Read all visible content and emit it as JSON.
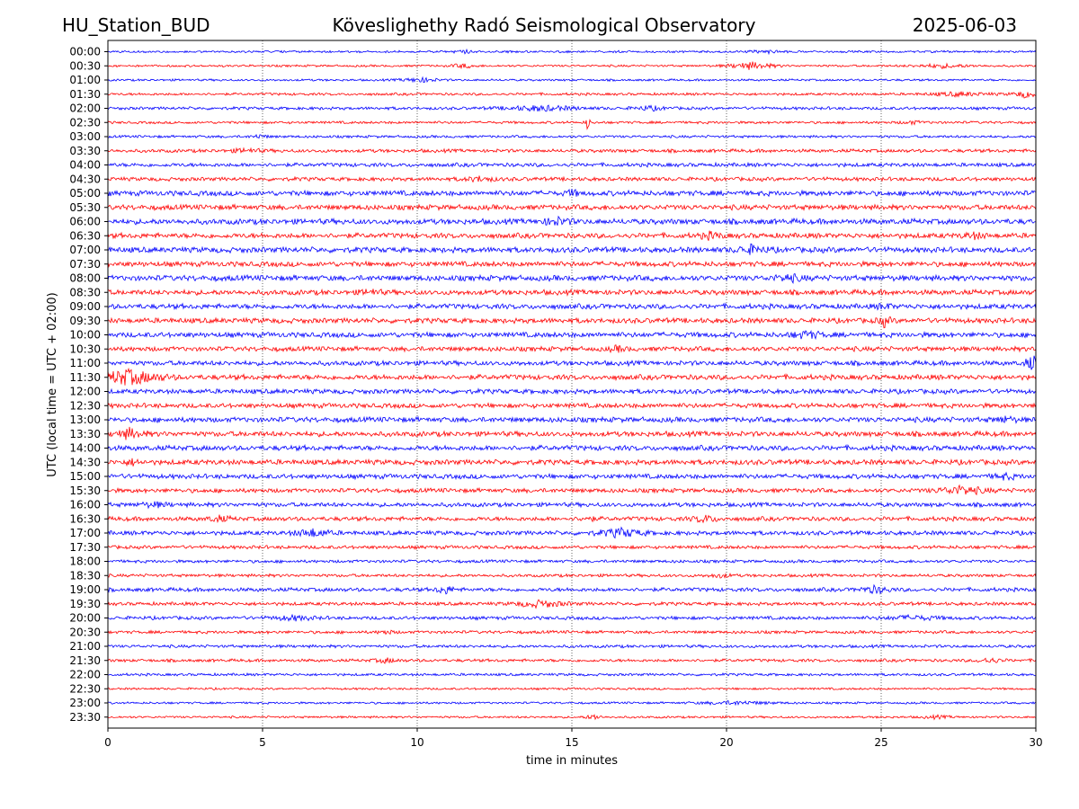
{
  "header": {
    "station": "HU_Station_BUD",
    "title": "Köveslighethy Radó Seismological Observatory",
    "date": "2025-06-03"
  },
  "chart_data": {
    "type": "line",
    "subtype": "helicorder",
    "title": "Köveslighethy Radó Seismological Observatory",
    "xlabel": "time in minutes",
    "ylabel": "UTC (local time = UTC + 02:00)",
    "xlim": [
      0,
      30
    ],
    "xticks": [
      "0",
      "5",
      "10",
      "15",
      "20",
      "25",
      "30"
    ],
    "grid": "vertical dotted at 5-minute intervals",
    "colors": {
      "even_rows": "#0000ff",
      "odd_rows": "#ff0000"
    },
    "rows": [
      {
        "label": "00:00",
        "noise": 0.25,
        "events": [
          {
            "t": 11.5,
            "amp": 0.5,
            "dur": 0.6
          },
          {
            "t": 21.3,
            "amp": 0.35,
            "dur": 1.2
          }
        ]
      },
      {
        "label": "00:30",
        "noise": 0.25,
        "events": [
          {
            "t": 11.5,
            "amp": 0.5,
            "dur": 0.8
          },
          {
            "t": 20.8,
            "amp": 0.9,
            "dur": 1.5
          },
          {
            "t": 27.0,
            "amp": 0.45,
            "dur": 2.0
          }
        ]
      },
      {
        "label": "01:00",
        "noise": 0.25,
        "events": [
          {
            "t": 10.1,
            "amp": 0.55,
            "dur": 1.2
          }
        ]
      },
      {
        "label": "01:30",
        "noise": 0.3,
        "events": [
          {
            "t": 29.7,
            "amp": 0.8,
            "dur": 0.9
          },
          {
            "t": 27.5,
            "amp": 0.45,
            "dur": 2.0
          }
        ]
      },
      {
        "label": "02:00",
        "noise": 0.35,
        "events": [
          {
            "t": 14.0,
            "amp": 0.6,
            "dur": 2.5
          },
          {
            "t": 17.5,
            "amp": 0.5,
            "dur": 1.0
          }
        ]
      },
      {
        "label": "02:30",
        "noise": 0.3,
        "events": [
          {
            "t": 15.5,
            "amp": 2.0,
            "dur": 0.15
          },
          {
            "t": 26.0,
            "amp": 0.35,
            "dur": 0.8
          }
        ]
      },
      {
        "label": "03:00",
        "noise": 0.3,
        "events": [
          {
            "t": 4.9,
            "amp": 0.4,
            "dur": 0.6
          }
        ]
      },
      {
        "label": "03:30",
        "noise": 0.4,
        "events": [
          {
            "t": 4.5,
            "amp": 0.45,
            "dur": 1.0
          }
        ]
      },
      {
        "label": "04:00",
        "noise": 0.45,
        "events": []
      },
      {
        "label": "04:30",
        "noise": 0.45,
        "events": [
          {
            "t": 12.0,
            "amp": 0.55,
            "dur": 1.0
          }
        ]
      },
      {
        "label": "05:00",
        "noise": 0.6,
        "events": [
          {
            "t": 15.0,
            "amp": 0.7,
            "dur": 0.4
          }
        ]
      },
      {
        "label": "05:30",
        "noise": 0.6,
        "events": []
      },
      {
        "label": "06:00",
        "noise": 0.65,
        "events": [
          {
            "t": 14.5,
            "amp": 0.8,
            "dur": 1.0
          }
        ]
      },
      {
        "label": "06:30",
        "noise": 0.6,
        "events": [
          {
            "t": 19.5,
            "amp": 0.7,
            "dur": 0.8
          },
          {
            "t": 28.0,
            "amp": 0.6,
            "dur": 0.8
          }
        ]
      },
      {
        "label": "07:00",
        "noise": 0.65,
        "events": [
          {
            "t": 20.8,
            "amp": 0.9,
            "dur": 1.0
          }
        ]
      },
      {
        "label": "07:30",
        "noise": 0.6,
        "events": []
      },
      {
        "label": "08:00",
        "noise": 0.65,
        "events": [
          {
            "t": 22.0,
            "amp": 0.7,
            "dur": 1.0
          }
        ]
      },
      {
        "label": "08:30",
        "noise": 0.6,
        "events": [
          {
            "t": 8.5,
            "amp": 0.7,
            "dur": 0.6
          }
        ]
      },
      {
        "label": "09:00",
        "noise": 0.6,
        "events": [
          {
            "t": 25.1,
            "amp": 0.6,
            "dur": 0.5
          }
        ]
      },
      {
        "label": "09:30",
        "noise": 0.6,
        "events": [
          {
            "t": 25.1,
            "amp": 1.3,
            "dur": 0.4
          }
        ]
      },
      {
        "label": "10:00",
        "noise": 0.6,
        "events": [
          {
            "t": 22.6,
            "amp": 0.8,
            "dur": 1.0
          }
        ]
      },
      {
        "label": "10:30",
        "noise": 0.55,
        "events": [
          {
            "t": 16.5,
            "amp": 0.6,
            "dur": 0.6
          }
        ]
      },
      {
        "label": "11:00",
        "noise": 0.55,
        "events": [
          {
            "t": 29.9,
            "amp": 1.8,
            "dur": 0.5
          }
        ]
      },
      {
        "label": "11:30",
        "noise": 0.6,
        "events": [
          {
            "t": 0.6,
            "amp": 1.8,
            "dur": 2.2
          }
        ]
      },
      {
        "label": "12:00",
        "noise": 0.55,
        "events": []
      },
      {
        "label": "12:30",
        "noise": 0.55,
        "events": []
      },
      {
        "label": "13:00",
        "noise": 0.6,
        "events": [
          {
            "t": 29.0,
            "amp": 0.6,
            "dur": 0.8
          }
        ]
      },
      {
        "label": "13:30",
        "noise": 0.6,
        "events": [
          {
            "t": 0.7,
            "amp": 1.2,
            "dur": 0.9
          }
        ]
      },
      {
        "label": "14:00",
        "noise": 0.6,
        "events": []
      },
      {
        "label": "14:30",
        "noise": 0.6,
        "events": [
          {
            "t": 0.8,
            "amp": 0.6,
            "dur": 0.5
          }
        ]
      },
      {
        "label": "15:00",
        "noise": 0.55,
        "events": [
          {
            "t": 29.0,
            "amp": 0.6,
            "dur": 0.8
          }
        ]
      },
      {
        "label": "15:30",
        "noise": 0.5,
        "events": [
          {
            "t": 27.6,
            "amp": 1.0,
            "dur": 1.6
          }
        ]
      },
      {
        "label": "16:00",
        "noise": 0.5,
        "events": [
          {
            "t": 1.5,
            "amp": 0.5,
            "dur": 1.0
          }
        ]
      },
      {
        "label": "16:30",
        "noise": 0.5,
        "events": [
          {
            "t": 3.6,
            "amp": 0.6,
            "dur": 0.8
          },
          {
            "t": 15.5,
            "amp": 0.5,
            "dur": 0.5
          },
          {
            "t": 19.3,
            "amp": 0.8,
            "dur": 0.8
          }
        ]
      },
      {
        "label": "17:00",
        "noise": 0.5,
        "events": [
          {
            "t": 6.6,
            "amp": 0.9,
            "dur": 1.2
          },
          {
            "t": 16.6,
            "amp": 1.0,
            "dur": 1.5
          }
        ]
      },
      {
        "label": "17:30",
        "noise": 0.4,
        "events": []
      },
      {
        "label": "18:00",
        "noise": 0.35,
        "events": []
      },
      {
        "label": "18:30",
        "noise": 0.35,
        "events": [
          {
            "t": 19.8,
            "amp": 0.4,
            "dur": 0.8
          }
        ]
      },
      {
        "label": "19:00",
        "noise": 0.45,
        "events": [
          {
            "t": 10.9,
            "amp": 1.0,
            "dur": 0.6
          },
          {
            "t": 24.8,
            "amp": 0.8,
            "dur": 1.0
          }
        ]
      },
      {
        "label": "19:30",
        "noise": 0.4,
        "events": [
          {
            "t": 14.0,
            "amp": 0.8,
            "dur": 1.6
          }
        ]
      },
      {
        "label": "20:00",
        "noise": 0.4,
        "events": [
          {
            "t": 6.0,
            "amp": 0.5,
            "dur": 1.5
          },
          {
            "t": 26.0,
            "amp": 0.45,
            "dur": 2.0
          }
        ]
      },
      {
        "label": "20:30",
        "noise": 0.35,
        "events": [
          {
            "t": 9.0,
            "amp": 0.45,
            "dur": 0.5
          }
        ]
      },
      {
        "label": "21:00",
        "noise": 0.35,
        "events": []
      },
      {
        "label": "21:30",
        "noise": 0.35,
        "events": [
          {
            "t": 9.0,
            "amp": 0.5,
            "dur": 0.8
          },
          {
            "t": 28.5,
            "amp": 0.6,
            "dur": 0.8
          }
        ]
      },
      {
        "label": "22:00",
        "noise": 0.3,
        "events": []
      },
      {
        "label": "22:30",
        "noise": 0.25,
        "events": []
      },
      {
        "label": "23:00",
        "noise": 0.25,
        "events": [
          {
            "t": 20.3,
            "amp": 0.4,
            "dur": 2.5
          }
        ]
      },
      {
        "label": "23:30",
        "noise": 0.25,
        "events": [
          {
            "t": 15.7,
            "amp": 0.7,
            "dur": 0.5
          },
          {
            "t": 26.8,
            "amp": 0.35,
            "dur": 1.0
          }
        ]
      }
    ]
  }
}
